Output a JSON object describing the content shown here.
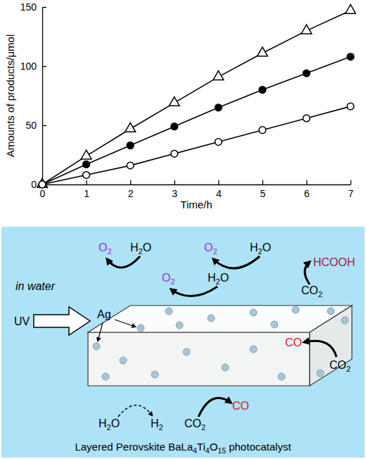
{
  "chart_data": {
    "type": "line",
    "x": [
      0,
      1,
      2,
      3,
      4,
      5,
      6,
      7
    ],
    "xlim": [
      0,
      7
    ],
    "xticks": [
      0,
      1,
      2,
      3,
      4,
      5,
      6,
      7
    ],
    "ylim": [
      0,
      150
    ],
    "yticks": [
      0,
      50,
      100,
      150
    ],
    "x_label": "Time/h",
    "y_label": "Amounts of products/μmol",
    "series": [
      {
        "color": "#000000",
        "marker": "open-triangle",
        "values": [
          0,
          24,
          47,
          69,
          91,
          111,
          130,
          147
        ]
      },
      {
        "color": "#000000",
        "marker": "filled-circle",
        "values": [
          0,
          17,
          33,
          49,
          65,
          80,
          94,
          108
        ]
      },
      {
        "color": "#000000",
        "marker": "open-circle",
        "values": [
          0,
          8,
          16,
          26,
          36,
          46,
          56,
          66
        ]
      }
    ]
  },
  "diagram": {
    "labels": [
      {
        "text": "in water",
        "color": "#000000"
      },
      {
        "text": "UV",
        "color": "#000000"
      },
      {
        "text": "Ag",
        "color": "#000000"
      },
      {
        "text": "O2",
        "color": "#9b30d9"
      },
      {
        "text": "H2O",
        "color": "#000000"
      },
      {
        "text": "O2",
        "color": "#9b30d9"
      },
      {
        "text": "H2O",
        "color": "#000000"
      },
      {
        "text": "O2",
        "color": "#9b30d9"
      },
      {
        "text": "H2O",
        "color": "#000000"
      },
      {
        "text": "HCOOH",
        "color": "#b0104a"
      },
      {
        "text": "CO2",
        "color": "#000000"
      },
      {
        "text": "CO",
        "color": "#e0102a"
      },
      {
        "text": "CO2",
        "color": "#000000"
      },
      {
        "text": "H2O",
        "color": "#000000"
      },
      {
        "text": "H2",
        "color": "#000000"
      },
      {
        "text": "CO2",
        "color": "#000000"
      },
      {
        "text": "CO",
        "color": "#e0102a"
      },
      {
        "text": "Layered Perovskite BaLa4Ti4O15 photocatalyst",
        "color": "#000000"
      }
    ]
  }
}
